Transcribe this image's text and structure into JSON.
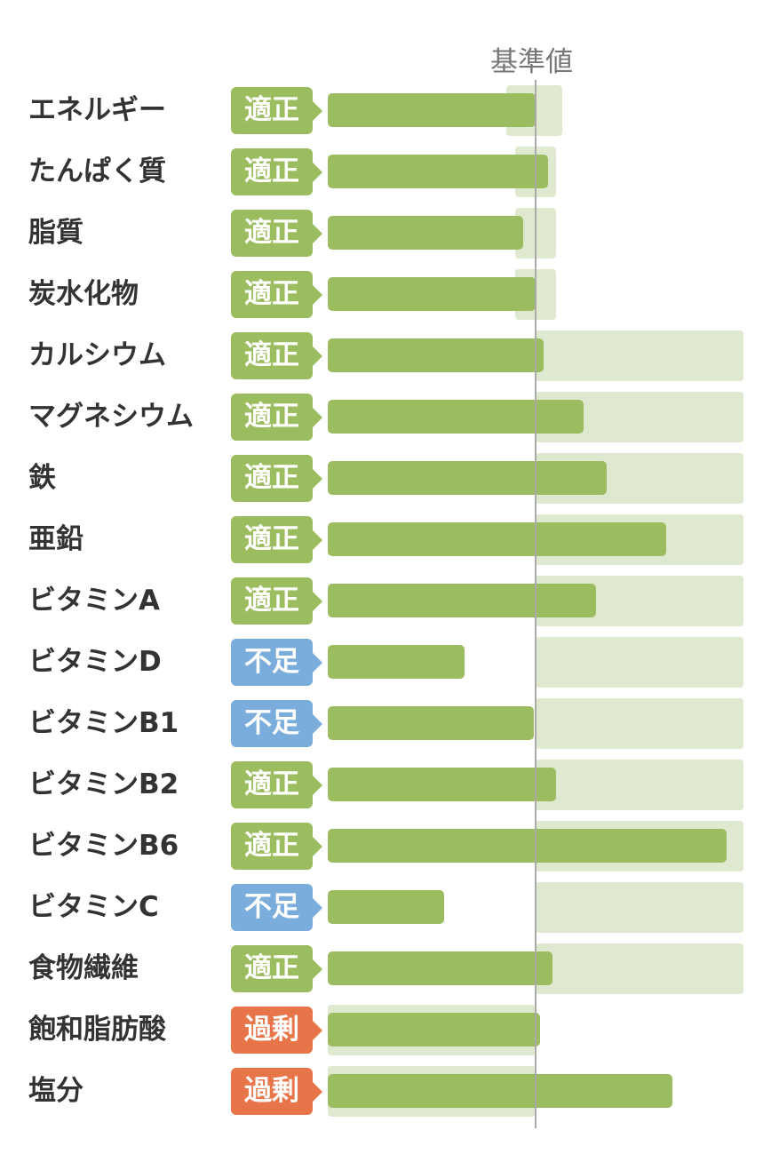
{
  "reference_label": "基準値",
  "status_colors": {
    "適正": "#9bbd5f",
    "不足": "#7aaddb",
    "過剰": "#e8744a"
  },
  "colors": {
    "bar": "#9bbd5f",
    "range": "#dfe9cf",
    "reference_line": "#aaaaaa"
  },
  "chart_data": {
    "type": "bar",
    "orientation": "horizontal",
    "reference": 100,
    "categories": [
      "エネルギー",
      "たんぱく質",
      "脂質",
      "炭水化物",
      "カルシウム",
      "マグネシウム",
      "鉄",
      "亜鉛",
      "ビタミンA",
      "ビタミンD",
      "ビタミンB1",
      "ビタミンB2",
      "ビタミンB6",
      "ビタミンC",
      "食物繊維",
      "飽和脂肪酸",
      "塩分"
    ],
    "status": [
      "適正",
      "適正",
      "適正",
      "適正",
      "適正",
      "適正",
      "適正",
      "適正",
      "適正",
      "不足",
      "不足",
      "適正",
      "適正",
      "不足",
      "適正",
      "過剰",
      "過剰"
    ],
    "values": [
      100,
      106,
      94,
      100,
      104,
      123,
      134,
      163,
      129,
      66,
      99,
      110,
      192,
      56,
      108,
      102,
      166
    ],
    "range_low": [
      86,
      90,
      90,
      90,
      100,
      100,
      100,
      100,
      100,
      100,
      100,
      100,
      100,
      100,
      100,
      0,
      0
    ],
    "range_high": [
      113,
      110,
      110,
      110,
      200,
      200,
      200,
      200,
      200,
      200,
      200,
      200,
      200,
      200,
      200,
      100,
      100
    ]
  }
}
